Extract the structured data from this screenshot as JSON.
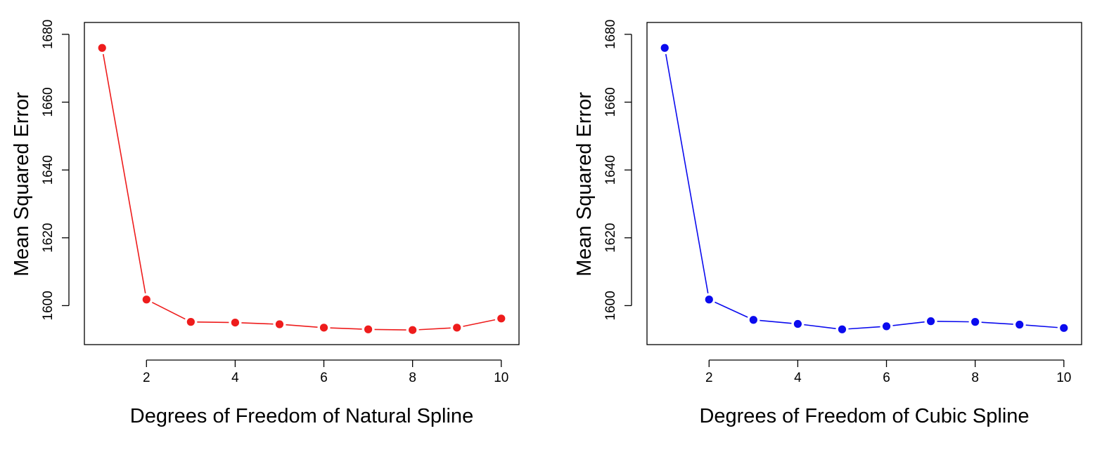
{
  "chart_data": [
    {
      "type": "line",
      "xlabel": "Degrees of Freedom of Natural Spline",
      "ylabel": "Mean Squared Error",
      "x": [
        1,
        2,
        3,
        4,
        5,
        6,
        7,
        8,
        9,
        10
      ],
      "series": [
        {
          "values": [
            1676,
            1601.8,
            1595.2,
            1595.0,
            1594.5,
            1593.5,
            1593.0,
            1592.8,
            1593.5,
            1596.2
          ],
          "color": "#ee1c1c"
        }
      ],
      "xlim": [
        0.6,
        10.4
      ],
      "ylim": [
        1588.5,
        1683.5
      ],
      "xticks": [
        2,
        4,
        6,
        8,
        10
      ],
      "xtick_labels": [
        "2",
        "4",
        "6",
        "8",
        "10"
      ],
      "yticks": [
        1600,
        1620,
        1640,
        1660,
        1680
      ],
      "ytick_labels": [
        "1600",
        "1620",
        "1640",
        "1660",
        "1680"
      ],
      "grid": false
    },
    {
      "type": "line",
      "xlabel": "Degrees of Freedom of Cubic Spline",
      "ylabel": "Mean Squared Error",
      "x": [
        1,
        2,
        3,
        4,
        5,
        6,
        7,
        8,
        9,
        10
      ],
      "series": [
        {
          "values": [
            1676,
            1601.8,
            1595.8,
            1594.6,
            1593.0,
            1593.9,
            1595.4,
            1595.2,
            1594.4,
            1593.4
          ],
          "color": "#0b0bee"
        }
      ],
      "xlim": [
        0.6,
        10.4
      ],
      "ylim": [
        1588.5,
        1683.5
      ],
      "xticks": [
        2,
        4,
        6,
        8,
        10
      ],
      "xtick_labels": [
        "2",
        "4",
        "6",
        "8",
        "10"
      ],
      "yticks": [
        1600,
        1620,
        1640,
        1660,
        1680
      ],
      "ytick_labels": [
        "1600",
        "1620",
        "1640",
        "1660",
        "1680"
      ],
      "grid": false
    }
  ]
}
